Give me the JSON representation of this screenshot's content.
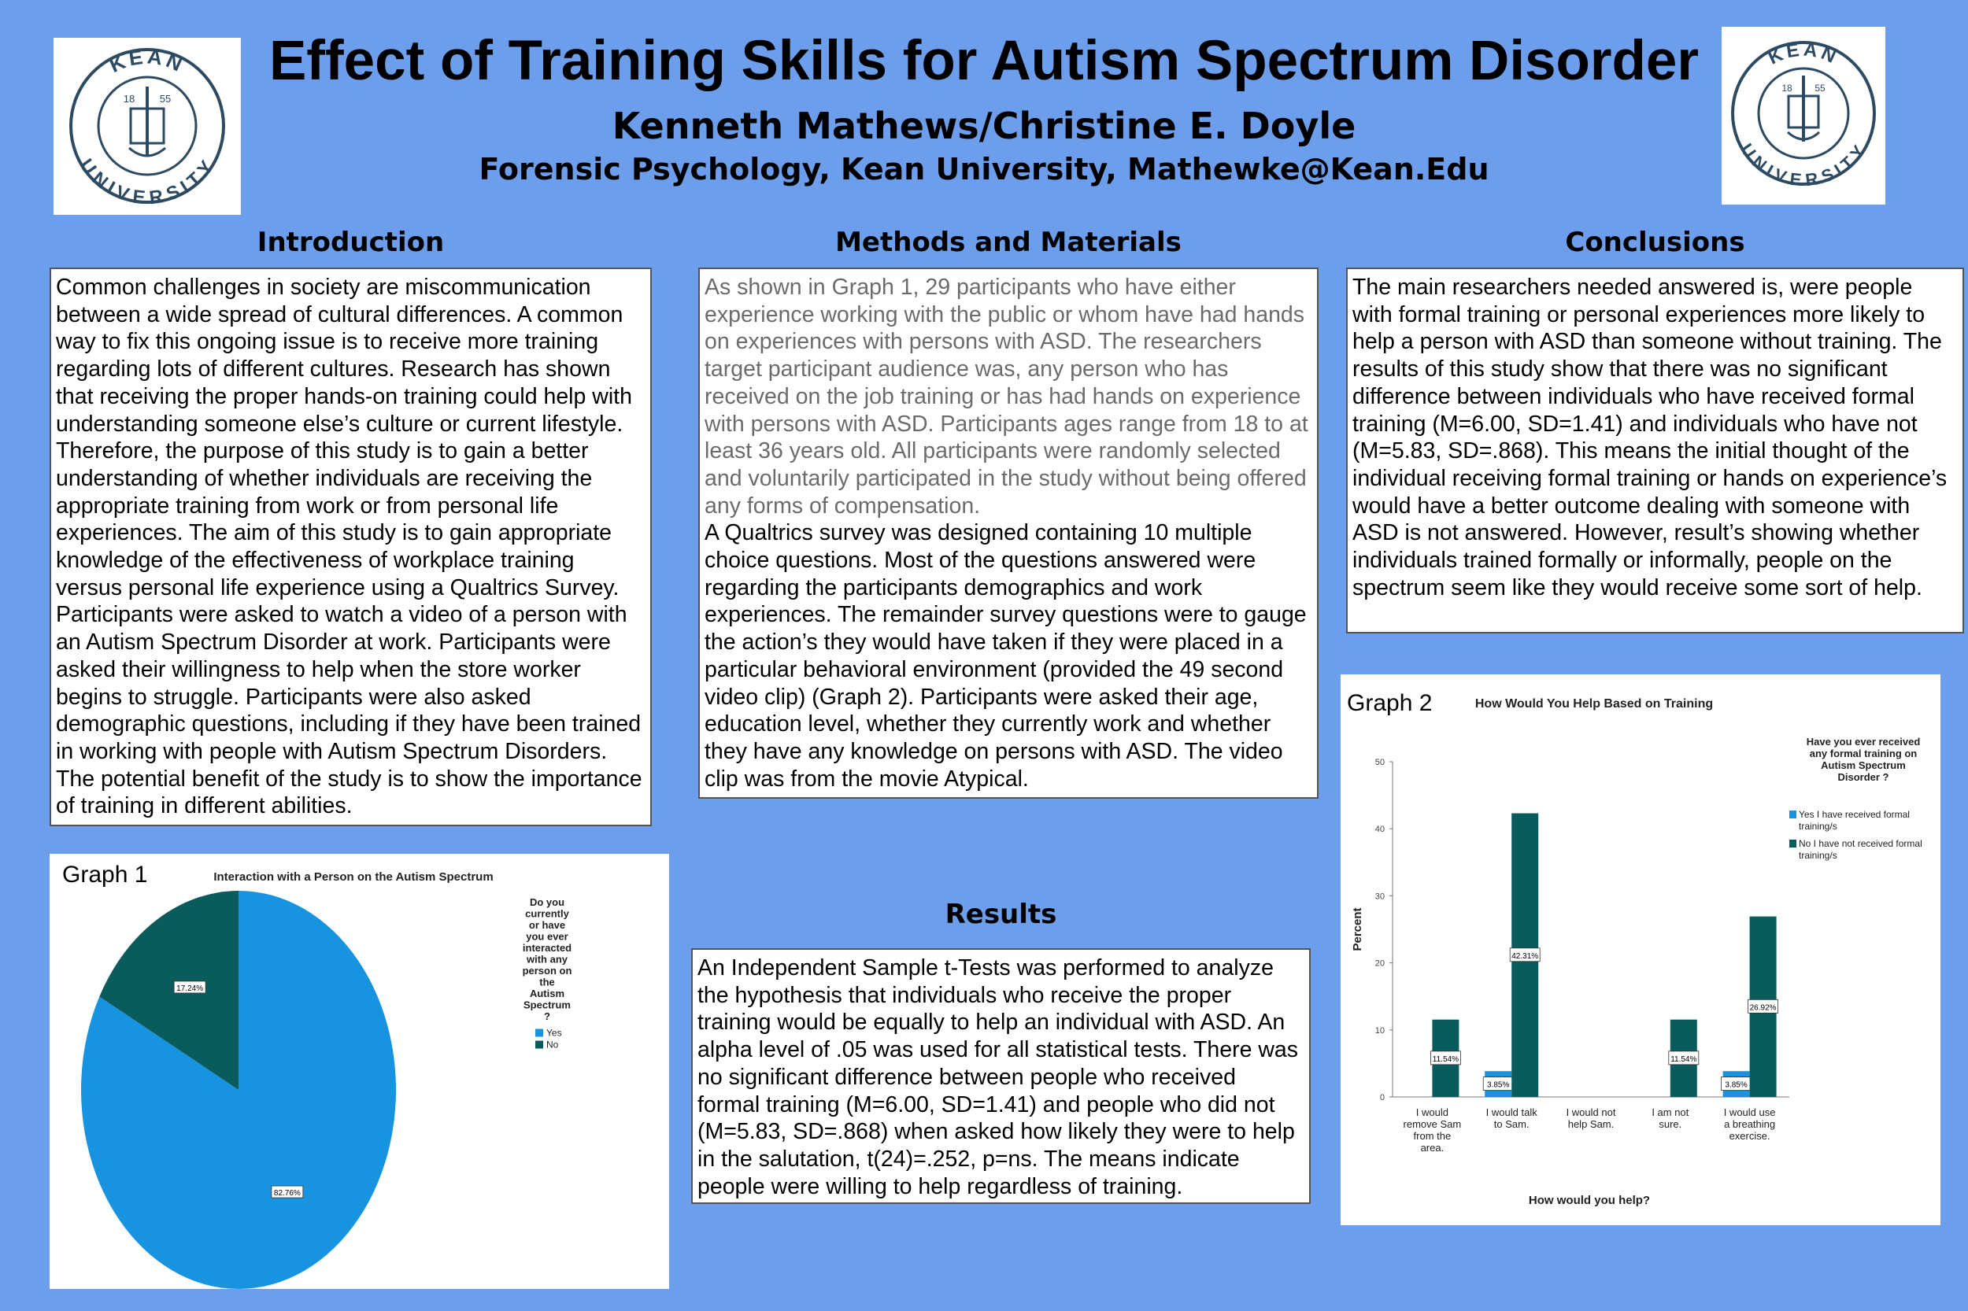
{
  "header": {
    "title": "Effect of Training Skills for Autism Spectrum Disorder",
    "authors": "Kenneth Mathews/Christine E. Doyle",
    "affiliation": "Forensic Psychology, Kean University, Mathewke@Kean.Edu",
    "logo_text_top": "KEAN",
    "logo_text_bottom": "UNIVERSITY",
    "logo_year_left": "18",
    "logo_year_right": "55"
  },
  "sections": {
    "introduction": {
      "heading": "Introduction",
      "body": "Common challenges in society are miscommunication between a wide spread of cultural differences. A common way to fix this ongoing issue is to receive more training regarding lots of different cultures. Research has shown that receiving the proper hands-on training could help with understanding someone else’s culture or current lifestyle. Therefore, the purpose of this study is to gain a better understanding of whether individuals are receiving the appropriate training from work or from personal life experiences. The aim of this study is to gain appropriate knowledge of the effectiveness of workplace training versus personal life experience using a Qualtrics Survey. Participants were asked to watch a video of a person with an Autism Spectrum Disorder at work. Participants were asked their willingness to help when the store worker begins to struggle. Participants were also asked demographic questions, including if they have been trained in working with people with Autism Spectrum Disorders. The potential benefit of the study is to show the importance of training in different abilities."
    },
    "methods": {
      "heading": "Methods and Materials",
      "body_part1": "As shown in Graph 1, 29 participants who have either experience working with the public or whom have had hands on experiences with persons with ASD.  The researchers target participant audience was, any person who has received on the job training or has had hands on experience with persons with ASD. Participants ages range from 18 to at least 36 years old. All participants were randomly selected and voluntarily participated in the study without being offered any forms of compensation.",
      "body_part2": "A Qualtrics survey was designed containing 10 multiple choice questions. Most of the questions answered were regarding the participants demographics and work experiences. The remainder survey questions were to gauge the action’s they would have taken if they were placed in a particular behavioral environment (provided the 49 second video clip) (Graph 2). Participants were asked their age, education level, whether they currently work and whether they have any knowledge on persons with ASD. The video clip was from the movie Atypical."
    },
    "results": {
      "heading": "Results",
      "body": "An Independent Sample t-Tests was performed to analyze the hypothesis that individuals who receive the proper training would be equally to help an individual with ASD. An alpha level of .05 was used for all statistical tests. There was no significant difference between people who received formal training (M=6.00, SD=1.41) and people who did not (M=5.83, SD=.868) when asked how likely they were to help in the salutation, t(24)=.252, p=ns. The means indicate people were willing to help regardless of training."
    },
    "conclusions": {
      "heading": "Conclusions",
      "body": "The main researchers needed answered is, were people with formal training or personal experiences more likely to help a person with ASD than someone without training. The results of this study show that there was no significant difference between individuals who have received formal training (M=6.00, SD=1.41) and individuals who have not (M=5.83, SD=.868). This means the initial thought of the individual receiving formal training or hands on experience’s would have a better outcome dealing with someone with ASD is not answered. However, result’s showing whether individuals trained formally or informally, people on the spectrum seem like they would receive some sort of help."
    }
  },
  "chart_data": [
    {
      "type": "pie",
      "label": "Graph 1",
      "title": "Interaction with a Person on the Autism Spectrum",
      "legend_title": "Do you currently or have you ever interacted with any person on the Autism Spectrum ?",
      "legend_title_lines": [
        "Do you",
        "currently",
        "or have",
        "you ever",
        "interacted",
        "with any",
        "person on",
        "the",
        "Autism",
        "Spectrum",
        "?"
      ],
      "categories": [
        "Yes",
        "No"
      ],
      "values": [
        82.76,
        17.24
      ],
      "data_labels": [
        "82.76%",
        "17.24%"
      ],
      "colors": [
        "#1793e0",
        "#0a5c5c"
      ],
      "legend_placement": "right"
    },
    {
      "type": "bar",
      "label": "Graph 2",
      "title": "How Would You Help Based on Training",
      "xlabel": "How would you help?",
      "ylabel": "Percent",
      "ylim": [
        0,
        50
      ],
      "yticks": [
        0,
        10,
        20,
        30,
        40,
        50
      ],
      "categories": [
        "I would remove Sam from the area.",
        "I would talk to Sam.",
        "I would not help Sam.",
        "I am not sure.",
        "I would use a breathing exercise."
      ],
      "category_lines": [
        [
          "I would",
          "remove Sam",
          "from the",
          "area."
        ],
        [
          "I would talk",
          "to Sam."
        ],
        [
          "I would not",
          "help Sam."
        ],
        [
          "I am not",
          "sure."
        ],
        [
          "I would use",
          "a breathing",
          "exercise."
        ]
      ],
      "series": [
        {
          "name": "Yes I have received formal training/s",
          "values": [
            0,
            3.85,
            0,
            0,
            3.85
          ],
          "color": "#1793e0"
        },
        {
          "name": "No I have not received formal training/s",
          "values": [
            11.54,
            42.31,
            0,
            11.54,
            26.92
          ],
          "color": "#0a5c5c"
        }
      ],
      "data_labels": [
        "11.54%",
        "3.85%",
        "42.31%",
        "11.54%",
        "3.85%",
        "26.92%"
      ],
      "legend_title": "Have you ever received any formal training on Autism Spectrum Disorder ?",
      "legend_title_lines": [
        "Have you ever received",
        "any formal training on",
        "Autism Spectrum",
        "Disorder ?"
      ],
      "legend_item_lines": [
        [
          "Yes I have received formal",
          "training/s"
        ],
        [
          "No I have not received formal",
          "training/s"
        ]
      ],
      "legend_placement": "right",
      "grid": false
    }
  ]
}
